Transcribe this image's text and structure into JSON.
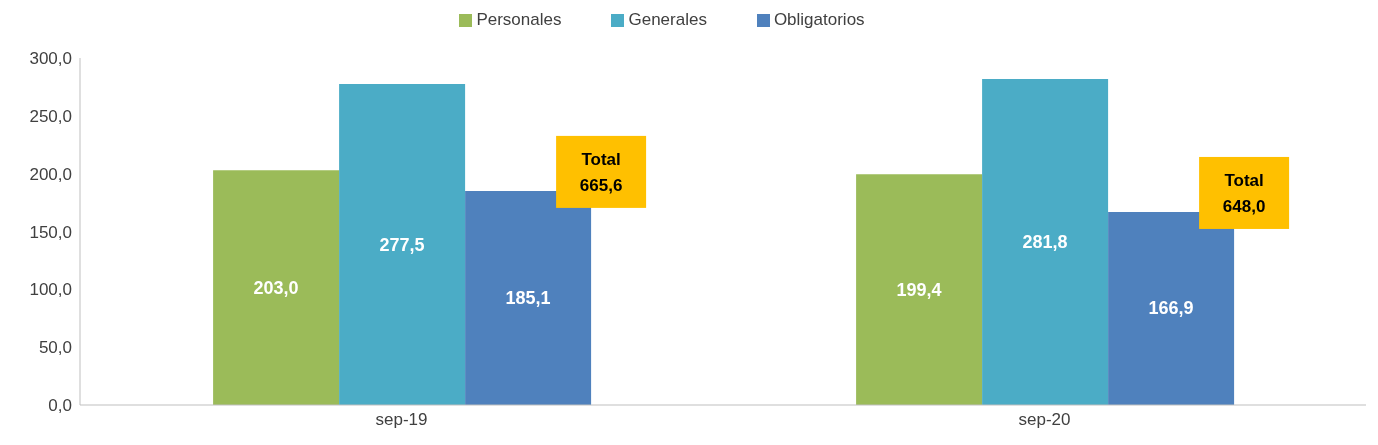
{
  "chart_data": {
    "type": "bar",
    "categories": [
      "sep-19",
      "sep-20"
    ],
    "series": [
      {
        "name": "Personales",
        "color": "#9bbb59",
        "values": [
          203.0,
          199.4
        ],
        "value_labels": [
          "203,0",
          "199,4"
        ]
      },
      {
        "name": "Generales",
        "color": "#4bacc6",
        "values": [
          277.5,
          281.8
        ],
        "value_labels": [
          "277,5",
          "281,8"
        ]
      },
      {
        "name": "Obligatorios",
        "color": "#4f81bd",
        "values": [
          185.1,
          166.9
        ],
        "value_labels": [
          "185,1",
          "166,9"
        ]
      }
    ],
    "ylim": [
      0,
      300
    ],
    "yticks": [
      {
        "value": 0,
        "label": "0,0"
      },
      {
        "value": 50,
        "label": "50,0"
      },
      {
        "value": 100,
        "label": "100,0"
      },
      {
        "value": 150,
        "label": "150,0"
      },
      {
        "value": 200,
        "label": "200,0"
      },
      {
        "value": 250,
        "label": "250,0"
      },
      {
        "value": 300,
        "label": "300,0"
      }
    ],
    "totals": [
      "Total 665,6",
      "Total 648,0"
    ],
    "legend": "top",
    "grid": false
  }
}
